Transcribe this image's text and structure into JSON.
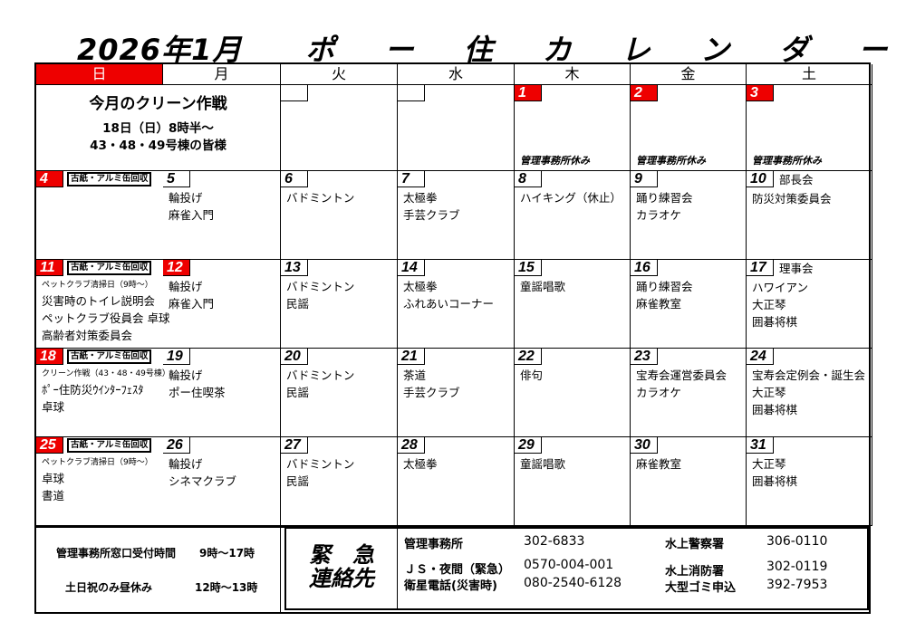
{
  "title": {
    "month": "2026年1月",
    "name": "ポ ー 住 カ レ ン ダ ー"
  },
  "weekdays": [
    "日",
    "月",
    "火",
    "水",
    "木",
    "金",
    "土"
  ],
  "colors": {
    "holiday_red": "#e00000"
  },
  "clean_notice": {
    "heading": "今月のクリーン作戦",
    "line1": "18日（日）8時半～",
    "line2": "43・48・49号棟の皆様"
  },
  "week1": [
    {
      "day": "",
      "items": []
    },
    {
      "day": "",
      "items": []
    },
    {
      "day": "1",
      "red": true,
      "items": [],
      "foot": "管理事務所休み"
    },
    {
      "day": "2",
      "red": true,
      "items": [],
      "foot": "管理事務所休み"
    },
    {
      "day": "3",
      "red": true,
      "items": [],
      "foot": "管理事務所休み"
    }
  ],
  "weeks": [
    [
      {
        "day": "4",
        "red": true,
        "badge": "古紙・アルミ缶回収",
        "items": []
      },
      {
        "day": "5",
        "items": [
          {
            "t": "輪投げ"
          },
          {
            "t": "麻雀入門"
          }
        ]
      },
      {
        "day": "6",
        "items": [
          {
            "t": "バドミントン"
          }
        ]
      },
      {
        "day": "7",
        "items": [
          {
            "t": "太極拳"
          },
          {
            "t": "手芸クラブ"
          }
        ]
      },
      {
        "day": "8",
        "items": [
          {
            "t": "ハイキング（休止）"
          }
        ]
      },
      {
        "day": "9",
        "items": [
          {
            "t": "踊り練習会"
          },
          {
            "t": "カラオケ"
          }
        ]
      },
      {
        "day": "10",
        "extra": "部長会",
        "items": [
          {
            "t": "防災対策委員会"
          }
        ]
      }
    ],
    [
      {
        "day": "11",
        "red": true,
        "badge": "古紙・アルミ缶回収",
        "items": [
          {
            "t": "ペットクラブ清掃日（9時～）",
            "small": true
          },
          {
            "t": "災害時のトイレ説明会"
          },
          {
            "t": "ペットクラブ役員会 卓球"
          },
          {
            "t": "高齢者対策委員会"
          }
        ]
      },
      {
        "day": "12",
        "red": true,
        "items": [
          {
            "t": "輪投げ"
          },
          {
            "t": "麻雀入門"
          }
        ]
      },
      {
        "day": "13",
        "items": [
          {
            "t": "バドミントン"
          },
          {
            "t": "民謡"
          }
        ]
      },
      {
        "day": "14",
        "items": [
          {
            "t": "太極拳"
          },
          {
            "t": "ふれあいコーナー"
          }
        ]
      },
      {
        "day": "15",
        "items": [
          {
            "t": "童謡唱歌"
          }
        ]
      },
      {
        "day": "16",
        "items": [
          {
            "t": "踊り練習会"
          },
          {
            "t": "麻雀教室"
          }
        ]
      },
      {
        "day": "17",
        "extra": "理事会",
        "items": [
          {
            "t": "ハワイアン"
          },
          {
            "t": "大正琴"
          },
          {
            "t": "囲碁将棋"
          }
        ]
      }
    ],
    [
      {
        "day": "18",
        "red": true,
        "badge": "古紙・アルミ缶回収",
        "items": [
          {
            "t": "クリーン作戦（43・48・49号棟）",
            "small": true
          },
          {
            "t": "ﾎﾟｰ住防災ｳｲﾝﾀｰﾌｪｽﾀ"
          },
          {
            "t": "卓球"
          }
        ]
      },
      {
        "day": "19",
        "items": [
          {
            "t": "輪投げ"
          },
          {
            "t": "ポー住喫茶"
          }
        ]
      },
      {
        "day": "20",
        "items": [
          {
            "t": "バドミントン"
          },
          {
            "t": "民謡"
          }
        ]
      },
      {
        "day": "21",
        "items": [
          {
            "t": "茶道"
          },
          {
            "t": "手芸クラブ"
          }
        ]
      },
      {
        "day": "22",
        "items": [
          {
            "t": "俳句"
          }
        ]
      },
      {
        "day": "23",
        "items": [
          {
            "t": "宝寿会運営委員会"
          },
          {
            "t": "カラオケ"
          }
        ]
      },
      {
        "day": "24",
        "items": [
          {
            "t": "宝寿会定例会・誕生会"
          },
          {
            "t": "大正琴"
          },
          {
            "t": "囲碁将棋"
          }
        ]
      }
    ],
    [
      {
        "day": "25",
        "red": true,
        "badge": "古紙・アルミ缶回収",
        "items": [
          {
            "t": "ペットクラブ清掃日（9時～）",
            "small": true
          },
          {
            "t": "卓球"
          },
          {
            "t": "書道"
          }
        ]
      },
      {
        "day": "26",
        "items": [
          {
            "t": "輪投げ"
          },
          {
            "t": "シネマクラブ"
          }
        ]
      },
      {
        "day": "27",
        "items": [
          {
            "t": "バドミントン"
          },
          {
            "t": "民謡"
          }
        ]
      },
      {
        "day": "28",
        "items": [
          {
            "t": "太極拳"
          }
        ]
      },
      {
        "day": "29",
        "items": [
          {
            "t": "童謡唱歌"
          }
        ]
      },
      {
        "day": "30",
        "items": [
          {
            "t": "麻雀教室"
          }
        ]
      },
      {
        "day": "31",
        "items": [
          {
            "t": "大正琴"
          },
          {
            "t": "囲碁将棋"
          }
        ]
      }
    ]
  ],
  "office_hours": {
    "label1": "管理事務所窓口受付時間",
    "value1": "9時～17時",
    "label2": "土日祝のみ昼休み",
    "value2": "12時～13時"
  },
  "emergency": {
    "title1": "緊　急",
    "title2": "連絡先",
    "contacts": [
      {
        "name": "管理事務所",
        "number": "302-6833"
      },
      {
        "name": "ＪＳ・夜間（緊急）",
        "number": "0570-004-001"
      },
      {
        "name": "衛星電話(災害時)",
        "number": "080-2540-6128"
      },
      {
        "name": "水上警察署",
        "number": "306-0110"
      },
      {
        "name": "水上消防署",
        "number": "302-0119"
      },
      {
        "name": "大型ゴミ申込",
        "number": "392-7953"
      }
    ]
  }
}
